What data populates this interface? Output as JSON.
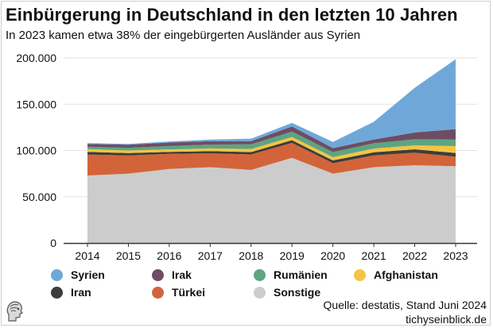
{
  "title": "Einbürgerung in Deutschland in den letzten 10 Jahren",
  "subtitle": "In 2023 kamen etwa 38% der eingebürgerten Ausländer aus Syrien",
  "source": {
    "line1": "Quelle: destatis, Stand Juni 2024",
    "line2": "tichyseinblick.de"
  },
  "colors": {
    "Syrien": "#6fa8d8",
    "Irak": "#6e4d63",
    "Rumänien": "#5da581",
    "Afghanistan": "#f6c443",
    "Iran": "#3d3d3d",
    "Türkei": "#d3643a",
    "Sonstige": "#cccccc",
    "grid": "#e2e2e2",
    "axis": "#333333"
  },
  "chart_data": {
    "type": "area",
    "stacked": true,
    "title": "Einbürgerung in Deutschland in den letzten 10 Jahren",
    "subtitle": "In 2023 kamen etwa 38% der eingebürgerten Ausländer aus Syrien",
    "x": [
      "2014",
      "2015",
      "2016",
      "2017",
      "2018",
      "2019",
      "2020",
      "2021",
      "2022",
      "2023"
    ],
    "ylim": [
      0,
      200000
    ],
    "yticks": [
      0,
      50000,
      100000,
      150000,
      200000
    ],
    "ytick_labels": [
      "0",
      "50.000",
      "100.000",
      "150.000",
      "200.000"
    ],
    "grid": true,
    "legend_position": "bottom",
    "series": [
      {
        "name": "Sonstige",
        "values": [
          73000,
          75000,
          80000,
          82000,
          79000,
          92000,
          75000,
          82000,
          84000,
          83000
        ]
      },
      {
        "name": "Türkei",
        "values": [
          22500,
          19700,
          16300,
          14900,
          16700,
          16200,
          11300,
          12800,
          13600,
          10300
        ]
      },
      {
        "name": "Iran",
        "values": [
          3000,
          2500,
          2200,
          2400,
          2600,
          3000,
          3000,
          3300,
          3700,
          4000
        ]
      },
      {
        "name": "Afghanistan",
        "values": [
          3000,
          2800,
          2700,
          2900,
          3300,
          3400,
          3500,
          4000,
          4300,
          7400
        ]
      },
      {
        "name": "Rumänien",
        "values": [
          2500,
          2900,
          3600,
          4200,
          5000,
          5800,
          5500,
          5700,
          6500,
          7300
        ]
      },
      {
        "name": "Irak",
        "values": [
          3000,
          3300,
          3800,
          3600,
          3500,
          5600,
          4300,
          4100,
          7400,
          11100
        ]
      },
      {
        "name": "Syrien",
        "values": [
          1000,
          900,
          1200,
          1800,
          2700,
          3900,
          6700,
          19100,
          48300,
          75500
        ]
      }
    ],
    "legend": [
      "Syrien",
      "Irak",
      "Rumänien",
      "Afghanistan",
      "Iran",
      "Türkei",
      "Sonstige"
    ]
  }
}
